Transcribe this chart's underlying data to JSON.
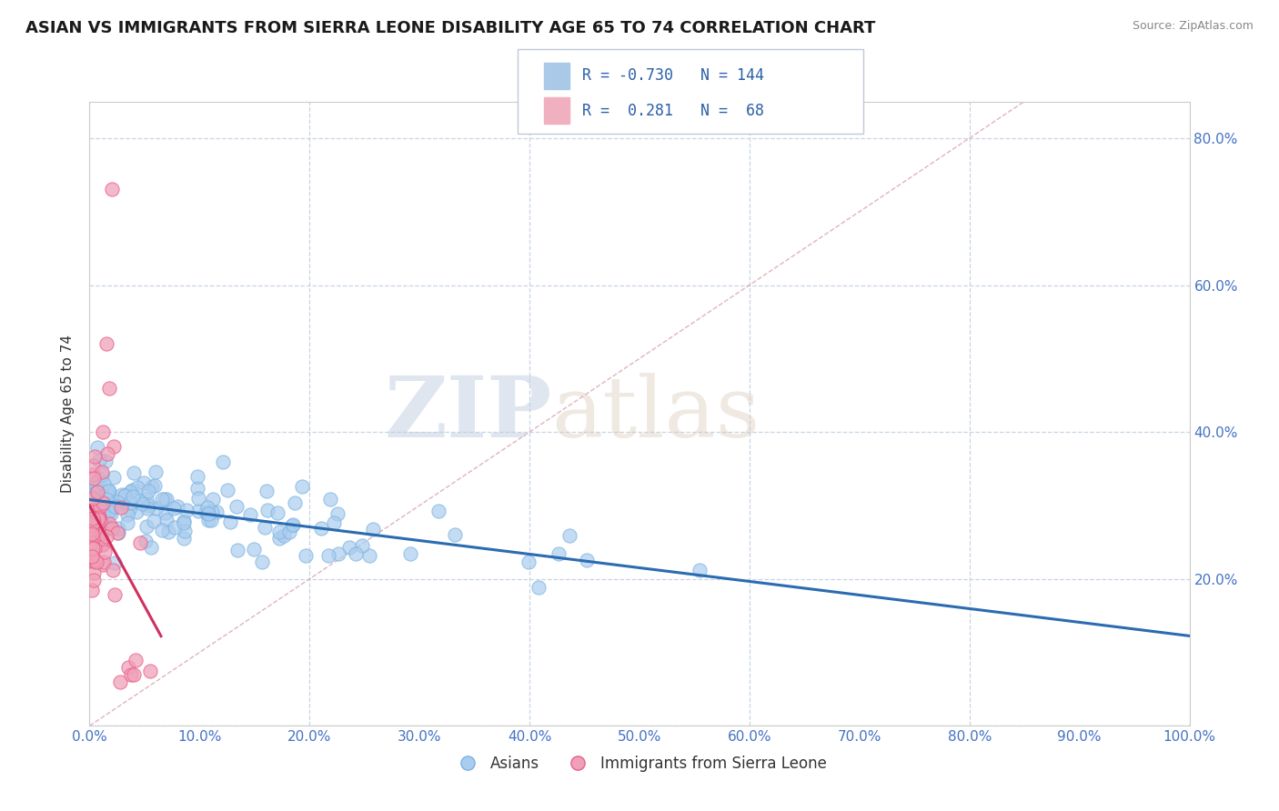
{
  "title": "ASIAN VS IMMIGRANTS FROM SIERRA LEONE DISABILITY AGE 65 TO 74 CORRELATION CHART",
  "source_text": "Source: ZipAtlas.com",
  "ylabel": "Disability Age 65 to 74",
  "watermark_zip": "ZIP",
  "watermark_atlas": "atlas",
  "asian_color": "#7ab3e0",
  "asian_fill": "#aaccee",
  "sierra_leone_color": "#e8608a",
  "sierra_leone_fill": "#f0a0b8",
  "asian_trend_color": "#2b6bb0",
  "sierra_leone_trend_color": "#d03060",
  "ref_line_color": "#d8a0b0",
  "grid_color": "#c8d4e4",
  "background_color": "#ffffff",
  "xlim": [
    0.0,
    1.0
  ],
  "ylim": [
    0.0,
    0.85
  ],
  "xticks": [
    0.0,
    0.1,
    0.2,
    0.3,
    0.4,
    0.5,
    0.6,
    0.7,
    0.8,
    0.9,
    1.0
  ],
  "yticks": [
    0.0,
    0.2,
    0.4,
    0.6,
    0.8
  ],
  "xticklabels": [
    "0.0%",
    "10.0%",
    "20.0%",
    "30.0%",
    "40.0%",
    "50.0%",
    "60.0%",
    "70.0%",
    "80.0%",
    "90.0%",
    "100.0%"
  ],
  "right_yticklabels": [
    "",
    "20.0%",
    "40.0%",
    "60.0%",
    "80.0%"
  ],
  "title_fontsize": 13,
  "axis_label_fontsize": 11,
  "tick_fontsize": 11
}
